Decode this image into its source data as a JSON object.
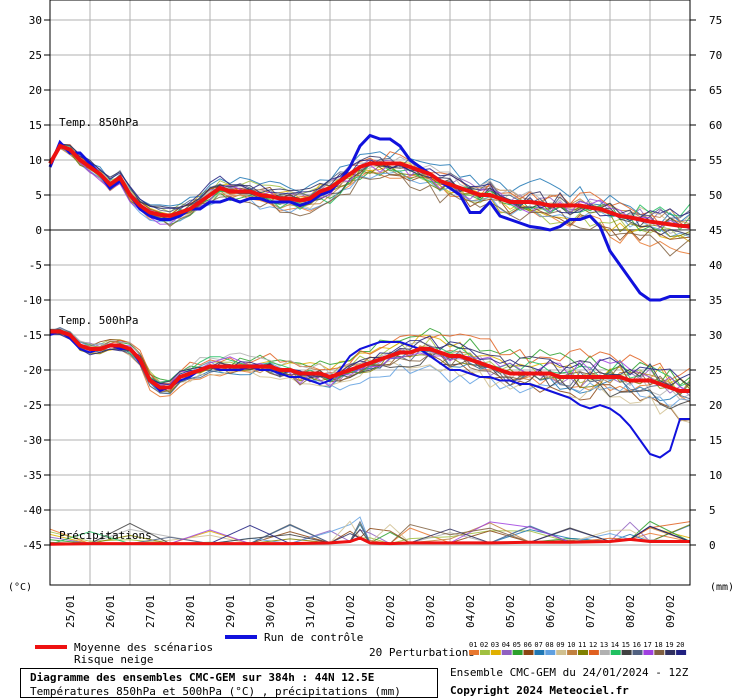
{
  "chart_data": {
    "type": "line",
    "title": "Diagramme des ensembles CMC-GEM sur 384h : 44N 12.5E",
    "subtitle": "Températures 850hPa et 500hPa (°C) , précipitations (mm)",
    "left_axis": {
      "label": "(°C)",
      "min": -50,
      "max": 30,
      "ticks": [
        30,
        25,
        20,
        15,
        10,
        5,
        0,
        -5,
        -10,
        -15,
        -20,
        -25,
        -30,
        -35,
        -40,
        -45
      ]
    },
    "right_axis": {
      "label": "(mm)",
      "ticks": [
        75,
        70,
        65,
        60,
        55,
        50,
        45,
        40,
        35,
        30,
        25,
        20,
        15,
        10,
        5,
        0
      ]
    },
    "x_labels": [
      "25/01",
      "26/01",
      "27/01",
      "28/01",
      "29/01",
      "30/01",
      "31/01",
      "01/02",
      "02/02",
      "03/02",
      "04/02",
      "05/02",
      "06/02",
      "07/02",
      "08/02",
      "09/02"
    ],
    "x_range_days": [
      0,
      16
    ],
    "panel_labels": {
      "t850": "Temp. 850hPa",
      "t500": "Temp. 500hPa",
      "precip": "Précipitations"
    },
    "mean_850": {
      "name": "Moyenne des scénarios",
      "x": [
        0,
        0.25,
        0.5,
        0.75,
        1,
        1.25,
        1.5,
        1.75,
        2,
        2.25,
        2.5,
        2.75,
        3,
        3.25,
        3.5,
        3.75,
        4,
        4.25,
        4.5,
        4.75,
        5,
        5.25,
        5.5,
        5.75,
        6,
        6.25,
        6.5,
        6.75,
        7,
        7.25,
        7.5,
        7.75,
        8,
        8.25,
        8.5,
        8.75,
        9,
        9.25,
        9.5,
        9.75,
        10,
        10.25,
        10.5,
        10.75,
        11,
        11.25,
        11.5,
        11.75,
        12,
        12.25,
        12.5,
        12.75,
        13,
        13.25,
        13.5,
        13.75,
        14,
        14.25,
        14.5,
        14.75,
        15,
        15.25,
        15.5,
        15.75,
        16
      ],
      "values": [
        9.5,
        12,
        11.5,
        10,
        9,
        8,
        6.5,
        7.5,
        5,
        3.5,
        2.5,
        2.2,
        2,
        2.5,
        3,
        4,
        5,
        6,
        5.5,
        5.5,
        5.5,
        5,
        4.8,
        4.5,
        4.5,
        4.2,
        4.5,
        5.5,
        6,
        7,
        8,
        9,
        9.5,
        9.5,
        9.5,
        9.5,
        9,
        8.5,
        8,
        7,
        6.5,
        6,
        5.5,
        5,
        5,
        4.5,
        4,
        4,
        4,
        3.8,
        3.5,
        3.5,
        3.5,
        3.5,
        3.2,
        3,
        2.5,
        2,
        1.8,
        1.5,
        1.2,
        1,
        0.8,
        0.6,
        0.5
      ]
    },
    "control_850": {
      "name": "Run de contrôle",
      "x": [
        0,
        0.25,
        0.5,
        0.75,
        1,
        1.25,
        1.5,
        1.75,
        2,
        2.25,
        2.5,
        2.75,
        3,
        3.25,
        3.5,
        3.75,
        4,
        4.25,
        4.5,
        4.75,
        5,
        5.25,
        5.5,
        5.75,
        6,
        6.25,
        6.5,
        6.75,
        7,
        7.25,
        7.5,
        7.75,
        8,
        8.25,
        8.5,
        8.75,
        9,
        9.25,
        9.5,
        9.75,
        10,
        10.25,
        10.5,
        10.75,
        11,
        11.25,
        11.5,
        11.75,
        12,
        12.25,
        12.5,
        12.75,
        13,
        13.25,
        13.5,
        13.75,
        14,
        14.25,
        14.5,
        14.75,
        15,
        15.25,
        15.5,
        15.75,
        16
      ],
      "values": [
        9,
        12.5,
        11,
        11,
        9.5,
        8,
        6,
        7,
        5,
        3,
        2,
        1.5,
        1.5,
        2,
        3,
        3,
        4,
        4,
        4.5,
        4,
        4.5,
        4.5,
        4,
        4,
        4,
        3.5,
        4,
        5,
        5.5,
        7,
        9,
        12,
        13.5,
        13,
        13,
        12,
        10,
        9,
        8,
        7,
        6,
        5,
        2.5,
        2.5,
        4,
        2,
        1.5,
        1,
        0.5,
        0.3,
        0,
        0.5,
        1.5,
        1.5,
        2,
        0.5,
        -3,
        -5,
        -7,
        -9,
        -10,
        -10,
        -9.5,
        -9.5,
        -9.5
      ]
    },
    "mean_500": {
      "name": "Moyenne des scénarios",
      "x": [
        0,
        0.25,
        0.5,
        0.75,
        1,
        1.25,
        1.5,
        1.75,
        2,
        2.25,
        2.5,
        2.75,
        3,
        3.25,
        3.5,
        3.75,
        4,
        4.25,
        4.5,
        4.75,
        5,
        5.25,
        5.5,
        5.75,
        6,
        6.25,
        6.5,
        6.75,
        7,
        7.25,
        7.5,
        7.75,
        8,
        8.25,
        8.5,
        8.75,
        9,
        9.25,
        9.5,
        9.75,
        10,
        10.25,
        10.5,
        10.75,
        11,
        11.25,
        11.5,
        11.75,
        12,
        12.25,
        12.5,
        12.75,
        13,
        13.25,
        13.5,
        13.75,
        14,
        14.25,
        14.5,
        14.75,
        15,
        15.25,
        15.5,
        15.75,
        16
      ],
      "values": [
        -14.5,
        -14.5,
        -15,
        -16.5,
        -17,
        -17,
        -16.5,
        -16.5,
        -17,
        -18.5,
        -21.5,
        -22.5,
        -22.5,
        -21,
        -20.5,
        -20,
        -19.5,
        -19.5,
        -19.5,
        -19.5,
        -19.5,
        -19.5,
        -19.5,
        -20,
        -20,
        -20.5,
        -20.5,
        -20.5,
        -21,
        -20.5,
        -20,
        -19.5,
        -19,
        -18.5,
        -18,
        -17.5,
        -17.5,
        -17,
        -17,
        -17.5,
        -18,
        -18,
        -18.5,
        -19,
        -19.5,
        -20,
        -20.5,
        -20.5,
        -20.5,
        -20.5,
        -20.5,
        -21,
        -21,
        -21,
        -21,
        -21,
        -21,
        -21,
        -21.5,
        -21.5,
        -21.5,
        -22,
        -22.5,
        -23,
        -23
      ]
    },
    "control_500": {
      "name": "Run de contrôle",
      "x": [
        0,
        0.25,
        0.5,
        0.75,
        1,
        1.25,
        1.5,
        1.75,
        2,
        2.25,
        2.5,
        2.75,
        3,
        3.25,
        3.5,
        3.75,
        4,
        4.25,
        4.5,
        4.75,
        5,
        5.25,
        5.5,
        5.75,
        6,
        6.25,
        6.5,
        6.75,
        7,
        7.25,
        7.5,
        7.75,
        8,
        8.25,
        8.5,
        8.75,
        9,
        9.25,
        9.5,
        9.75,
        10,
        10.25,
        10.5,
        10.75,
        11,
        11.25,
        11.5,
        11.75,
        12,
        12.25,
        12.5,
        12.75,
        13,
        13.25,
        13.5,
        13.75,
        14,
        14.25,
        14.5,
        14.75,
        15,
        15.25,
        15.5,
        15.75,
        16
      ],
      "values": [
        -15,
        -14.5,
        -15.5,
        -17,
        -17.5,
        -17,
        -16.5,
        -17,
        -17,
        -19,
        -21.5,
        -23,
        -22.5,
        -21.5,
        -21,
        -20,
        -19.5,
        -20,
        -20,
        -20,
        -19.5,
        -20,
        -20,
        -20.5,
        -21,
        -21,
        -21.5,
        -22,
        -21.5,
        -20,
        -18,
        -17,
        -16.5,
        -16,
        -16,
        -16,
        -16.5,
        -17,
        -18,
        -19,
        -20,
        -20,
        -20.5,
        -21,
        -21,
        -21.5,
        -21.5,
        -22,
        -22,
        -22.5,
        -23,
        -23.5,
        -24,
        -25,
        -25.5,
        -25,
        -25.5,
        -26.5,
        -28,
        -30,
        -32,
        -32.5,
        -31.5,
        -27,
        -27
      ]
    },
    "mean_precip": {
      "name": "Moyenne des scénarios",
      "x": [
        0,
        1,
        2,
        3,
        4,
        5,
        6,
        7,
        7.5,
        7.75,
        8,
        8.5,
        9,
        10,
        11,
        12,
        13,
        14,
        14.5,
        15,
        16
      ],
      "values": [
        0.1,
        0.2,
        0.2,
        0.2,
        0.2,
        0.2,
        0.2,
        0.3,
        0.5,
        1,
        0.3,
        0.2,
        0.3,
        0.3,
        0.3,
        0.4,
        0.4,
        0.5,
        0.8,
        0.5,
        0.5
      ]
    },
    "perturbations": {
      "label": "20 Perturbations",
      "ids": [
        "01",
        "02",
        "03",
        "04",
        "05",
        "06",
        "07",
        "08",
        "09",
        "10",
        "11",
        "12",
        "13",
        "14",
        "15",
        "16",
        "17",
        "18",
        "19",
        "20"
      ],
      "colors": [
        "#e8772e",
        "#a0c040",
        "#e0b000",
        "#9060c0",
        "#2ca02c",
        "#8b4513",
        "#1f77b4",
        "#60a0e0",
        "#d0c090",
        "#c08040",
        "#808000",
        "#e06020",
        "#b0b0b0",
        "#20c060",
        "#404040",
        "#506080",
        "#a040e0",
        "#806040",
        "#303060",
        "#202080"
      ]
    },
    "legend": {
      "mean": "Moyenne des scénarios",
      "control": "Run de contrôle",
      "snow": "Risque neige",
      "perturbations": "20 Perturbations"
    },
    "colors": {
      "mean": "#ee1111",
      "control": "#1111dd",
      "zero_line": "#888888",
      "grid": "#b0b0b0"
    }
  },
  "footer": {
    "title": "Diagramme des ensembles CMC-GEM sur 384h : 44N 12.5E",
    "subtitle": "Températures 850hPa et 500hPa (°C) , précipitations (mm)",
    "run_info": "Ensemble CMC-GEM du 24/01/2024 - 12Z",
    "copyright": "Copyright 2024 Meteociel.fr"
  }
}
